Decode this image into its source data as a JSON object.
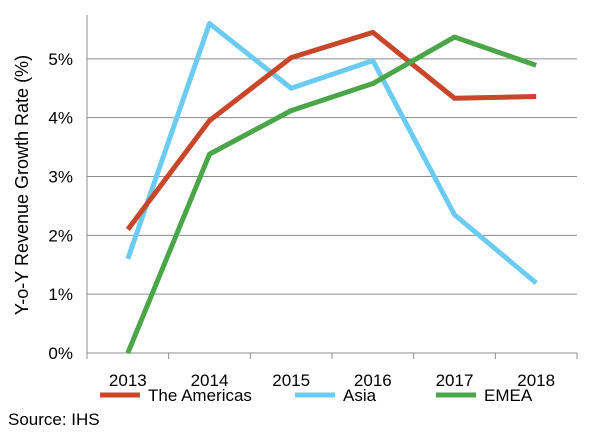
{
  "chart_data": {
    "type": "line",
    "x": [
      "2013",
      "2014",
      "2015",
      "2016",
      "2017",
      "2018"
    ],
    "series": [
      {
        "name": "The Americas",
        "color": "#c8472a",
        "values": [
          2.1,
          3.95,
          5.02,
          5.45,
          4.33,
          4.36
        ]
      },
      {
        "name": "Asia",
        "color": "#6ccbf3",
        "values": [
          1.6,
          5.6,
          4.5,
          4.97,
          2.35,
          1.19
        ]
      },
      {
        "name": "EMEA",
        "color": "#4aa648",
        "values": [
          0.0,
          3.38,
          4.12,
          4.58,
          5.37,
          4.89
        ]
      }
    ],
    "ylabel": "Y-o-Y Revenue Growth Rate (%)",
    "xlabel": "",
    "ylim": [
      0,
      6
    ],
    "yticks": [
      0,
      1,
      2,
      3,
      4,
      5
    ],
    "ytick_labels": [
      "0%",
      "1%",
      "2%",
      "3%",
      "4%",
      "5%"
    ],
    "grid": true,
    "legend_position": "bottom"
  },
  "source": "Source: IHS"
}
